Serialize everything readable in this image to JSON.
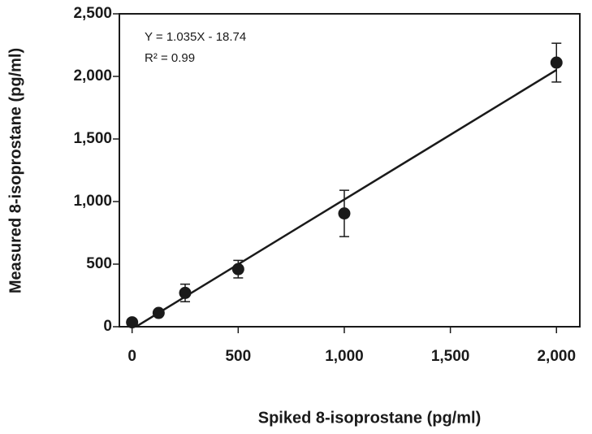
{
  "chart_data": {
    "type": "scatter",
    "x_label": "Spiked 8-isoprostane (pg/ml)",
    "y_label": "Measured 8-isoprostane (pg/ml)",
    "annotations": [
      "Y = 1.035X - 18.74",
      "R² = 0.99"
    ],
    "x": [
      0,
      125,
      250,
      500,
      1000,
      2000
    ],
    "series": [
      {
        "name": "Measured",
        "color": "#1a1a1a",
        "values": [
          35,
          110,
          270,
          460,
          905,
          2110
        ],
        "errors": [
          null,
          null,
          70,
          70,
          185,
          155
        ]
      }
    ],
    "trendline": {
      "slope": 1.035,
      "intercept": -18.74
    },
    "xlim": [
      -60,
      2110
    ],
    "ylim": [
      0,
      2500
    ],
    "xticks": [
      0,
      500,
      {
        "value": 1000,
        "label": "1,000"
      },
      {
        "value": 1500,
        "label": "1,500"
      },
      {
        "value": 2000,
        "label": "2,000"
      }
    ],
    "yticks": [
      0,
      500,
      {
        "value": 1000,
        "label": "1,000"
      },
      {
        "value": 1500,
        "label": "1,500"
      },
      {
        "value": 2000,
        "label": "2,000"
      },
      {
        "value": 2500,
        "label": "2,500"
      }
    ]
  }
}
